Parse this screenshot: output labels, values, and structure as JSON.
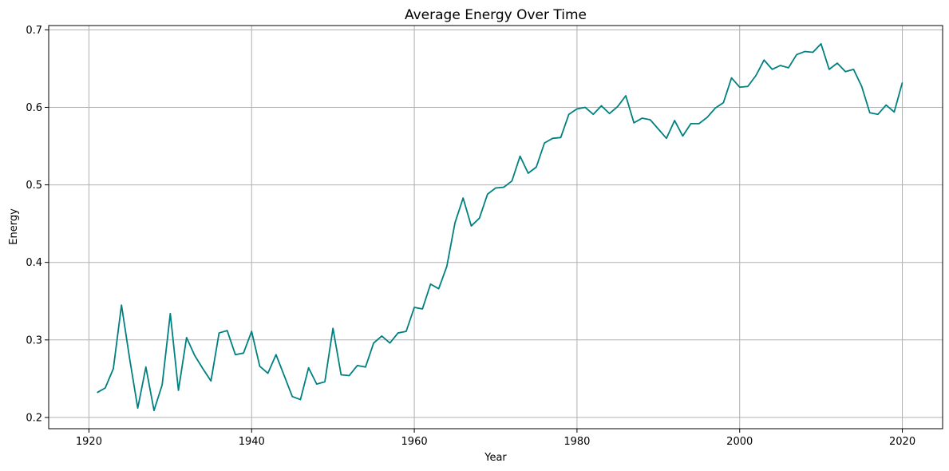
{
  "chart_data": {
    "type": "line",
    "title": "Average Energy Over Time",
    "xlabel": "Year",
    "ylabel": "Energy",
    "xlim": [
      1915.05,
      2024.95
    ],
    "ylim": [
      0.1855,
      0.7055
    ],
    "xticks": [
      1920,
      1940,
      1960,
      1980,
      2000,
      2020
    ],
    "yticks": [
      0.2,
      0.3,
      0.4,
      0.5,
      0.6,
      0.7
    ],
    "xtick_labels": [
      "1920",
      "1940",
      "1960",
      "1980",
      "2000",
      "2020"
    ],
    "ytick_labels": [
      "0.2",
      "0.3",
      "0.4",
      "0.5",
      "0.6",
      "0.7"
    ],
    "grid": true,
    "line_color": "#008080",
    "grid_color": "#b0b0b0",
    "series": [
      {
        "x": [
          1921,
          1922,
          1923,
          1924,
          1925,
          1926,
          1927,
          1928,
          1929,
          1930,
          1931,
          1932,
          1933,
          1934,
          1935,
          1936,
          1937,
          1938,
          1939,
          1940,
          1941,
          1942,
          1943,
          1944,
          1945,
          1946,
          1947,
          1948,
          1949,
          1950,
          1951,
          1952,
          1953,
          1954,
          1955,
          1956,
          1957,
          1958,
          1959,
          1960,
          1961,
          1962,
          1963,
          1964,
          1965,
          1966,
          1967,
          1968,
          1969,
          1970,
          1971,
          1972,
          1973,
          1974,
          1975,
          1976,
          1977,
          1978,
          1979,
          1980,
          1981,
          1982,
          1983,
          1984,
          1985,
          1986,
          1987,
          1988,
          1989,
          1990,
          1991,
          1992,
          1993,
          1994,
          1995,
          1996,
          1997,
          1998,
          1999,
          2000,
          2001,
          2002,
          2003,
          2004,
          2005,
          2006,
          2007,
          2008,
          2009,
          2010,
          2011,
          2012,
          2013,
          2014,
          2015,
          2016,
          2017,
          2018,
          2019,
          2020
        ],
        "values": [
          0.232,
          0.238,
          0.263,
          0.345,
          0.276,
          0.212,
          0.265,
          0.209,
          0.242,
          0.334,
          0.235,
          0.303,
          0.28,
          0.263,
          0.247,
          0.309,
          0.312,
          0.281,
          0.283,
          0.311,
          0.266,
          0.257,
          0.281,
          0.254,
          0.227,
          0.223,
          0.264,
          0.243,
          0.246,
          0.315,
          0.255,
          0.254,
          0.267,
          0.265,
          0.296,
          0.305,
          0.296,
          0.309,
          0.311,
          0.342,
          0.34,
          0.372,
          0.366,
          0.395,
          0.451,
          0.483,
          0.447,
          0.457,
          0.488,
          0.496,
          0.497,
          0.505,
          0.537,
          0.515,
          0.523,
          0.554,
          0.56,
          0.561,
          0.591,
          0.598,
          0.6,
          0.591,
          0.602,
          0.592,
          0.601,
          0.615,
          0.58,
          0.586,
          0.584,
          0.572,
          0.56,
          0.583,
          0.563,
          0.579,
          0.579,
          0.587,
          0.599,
          0.606,
          0.638,
          0.626,
          0.627,
          0.641,
          0.661,
          0.649,
          0.654,
          0.651,
          0.668,
          0.672,
          0.671,
          0.682,
          0.649,
          0.657,
          0.646,
          0.649,
          0.627,
          0.593,
          0.591,
          0.603,
          0.594,
          0.632
        ]
      }
    ]
  }
}
